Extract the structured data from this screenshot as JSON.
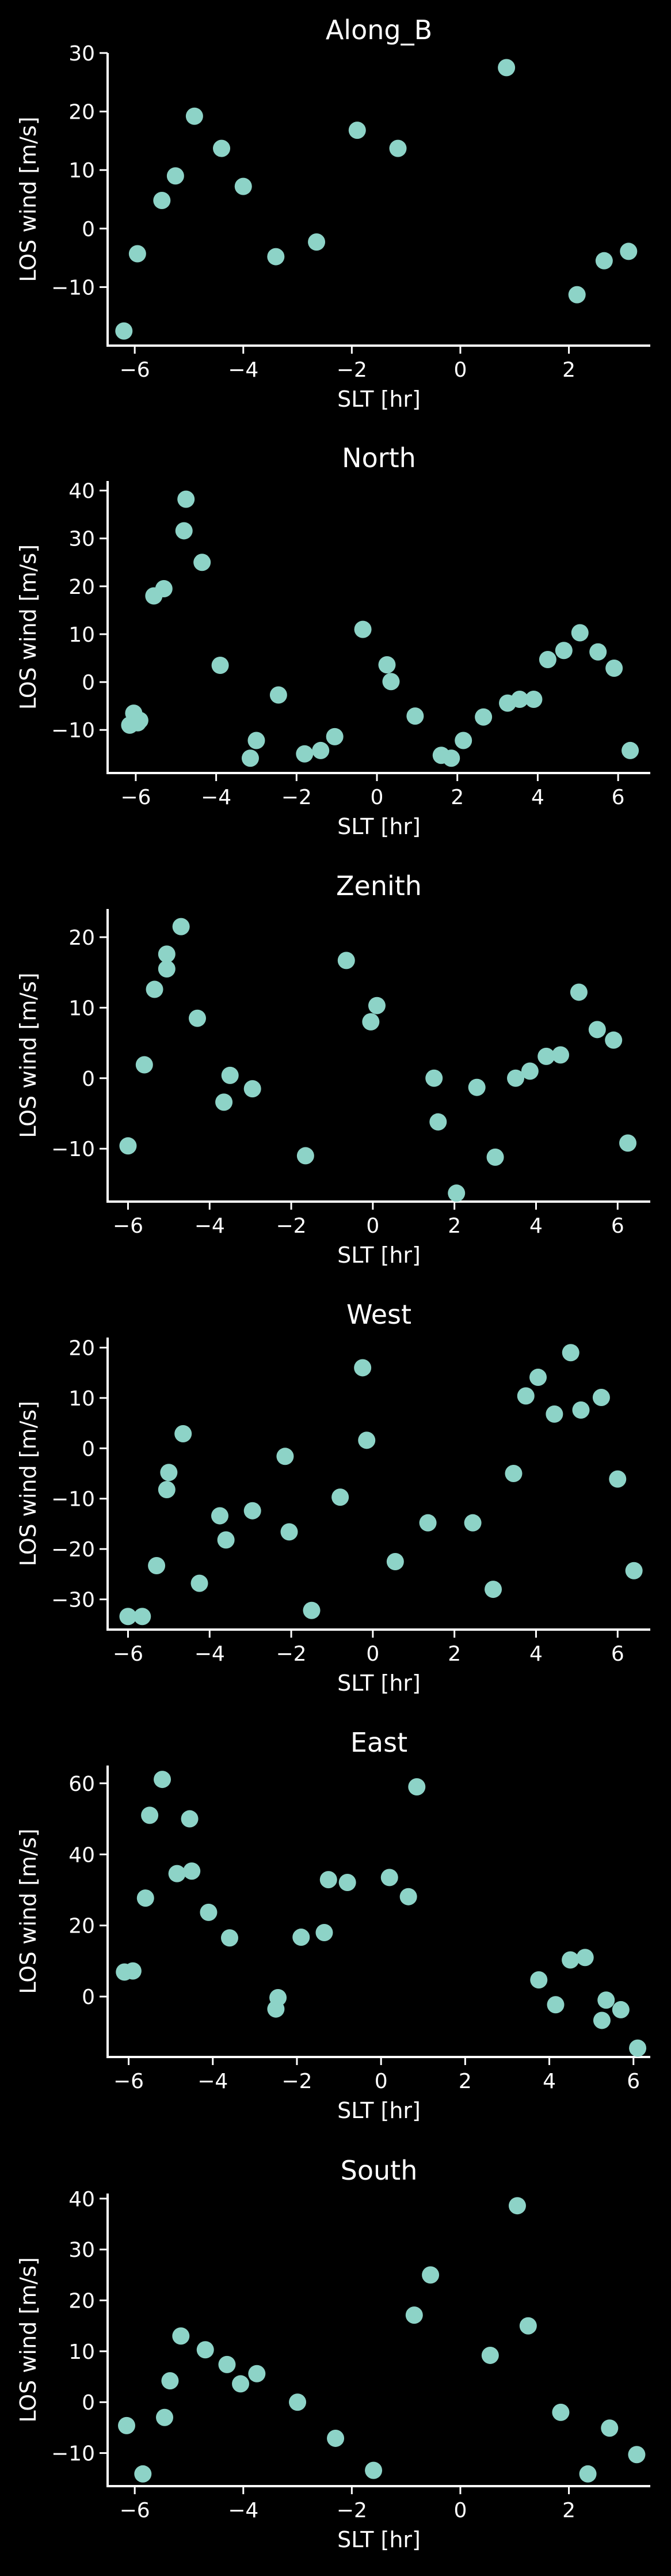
{
  "chart_data": [
    {
      "type": "scatter",
      "title": "Along_B",
      "xlabel": "SLT [hr]",
      "ylabel": "LOS wind [m/s]",
      "xlim": [
        -6.5,
        3.5
      ],
      "ylim": [
        -20,
        30
      ],
      "xticks": [
        -6,
        -4,
        -2,
        0,
        2
      ],
      "yticks": [
        -10,
        0,
        10,
        20,
        30
      ],
      "color": "#8dd3c7",
      "grid": false,
      "x": [
        -6.2,
        -5.95,
        -5.5,
        -5.25,
        -4.9,
        -4.4,
        -4.0,
        -3.4,
        -2.65,
        -1.9,
        -1.15,
        0.85,
        2.15,
        2.65,
        3.1
      ],
      "y": [
        -17.5,
        -4.3,
        4.8,
        9.0,
        19.2,
        13.7,
        7.2,
        -4.8,
        -2.3,
        16.8,
        13.7,
        27.5,
        -11.3,
        -5.5,
        -3.9
      ]
    },
    {
      "type": "scatter",
      "title": "North",
      "xlabel": "SLT [hr]",
      "ylabel": "LOS wind [m/s]",
      "xlim": [
        -6.7,
        6.8
      ],
      "ylim": [
        -19,
        42
      ],
      "xticks": [
        -6,
        -4,
        -2,
        0,
        2,
        4,
        6
      ],
      "yticks": [
        -10,
        0,
        10,
        20,
        30,
        40
      ],
      "color": "#8dd3c7",
      "grid": false,
      "x": [
        -6.15,
        -6.05,
        -5.95,
        -5.9,
        -5.55,
        -5.3,
        -4.8,
        -4.75,
        -4.35,
        -3.9,
        -3.15,
        -3.0,
        -2.45,
        -1.8,
        -1.4,
        -1.05,
        -0.35,
        0.25,
        0.35,
        0.95,
        1.6,
        1.85,
        2.15,
        2.65,
        3.25,
        3.55,
        3.9,
        4.25,
        4.65,
        5.05,
        5.5,
        5.9,
        6.3
      ],
      "y": [
        -9.0,
        -6.5,
        -8.5,
        -8.0,
        18.0,
        19.5,
        31.6,
        38.2,
        25.0,
        3.5,
        -15.9,
        -12.2,
        -2.7,
        -15.0,
        -14.3,
        -11.4,
        11.0,
        3.6,
        0.1,
        -7.1,
        -15.3,
        -15.9,
        -12.2,
        -7.3,
        -4.4,
        -3.6,
        -3.6,
        4.7,
        6.6,
        10.3,
        6.3,
        2.9,
        -14.3
      ]
    },
    {
      "type": "scatter",
      "title": "Zenith",
      "xlabel": "SLT [hr]",
      "ylabel": "LOS wind [m/s]",
      "xlim": [
        -6.5,
        6.8
      ],
      "ylim": [
        -17.5,
        24
      ],
      "xticks": [
        -6,
        -4,
        -2,
        0,
        2,
        4,
        6
      ],
      "yticks": [
        -10,
        0,
        10,
        20
      ],
      "color": "#8dd3c7",
      "grid": false,
      "x": [
        -6.0,
        -5.6,
        -5.35,
        -5.05,
        -5.05,
        -4.7,
        -4.3,
        -3.65,
        -3.5,
        -2.95,
        -1.65,
        -0.65,
        -0.05,
        0.1,
        1.5,
        1.6,
        2.05,
        2.55,
        3.0,
        3.5,
        3.85,
        4.25,
        4.6,
        5.05,
        5.5,
        5.9,
        6.25
      ],
      "y": [
        -9.6,
        1.9,
        12.6,
        15.5,
        17.6,
        21.5,
        8.5,
        -3.4,
        0.4,
        -1.5,
        -11.0,
        16.7,
        8.0,
        10.3,
        0.0,
        -6.2,
        -16.3,
        -1.3,
        -11.2,
        0.0,
        1.0,
        3.1,
        3.3,
        12.2,
        6.9,
        5.4,
        -9.2
      ]
    },
    {
      "type": "scatter",
      "title": "West",
      "xlabel": "SLT [hr]",
      "ylabel": "LOS wind [m/s]",
      "xlim": [
        -6.5,
        6.8
      ],
      "ylim": [
        -36,
        22
      ],
      "xticks": [
        -6,
        -4,
        -2,
        0,
        2,
        4,
        6
      ],
      "yticks": [
        -30,
        -20,
        -10,
        0,
        10,
        20
      ],
      "color": "#8dd3c7",
      "grid": false,
      "x": [
        -6.0,
        -5.65,
        -5.3,
        -5.05,
        -5.0,
        -4.65,
        -4.25,
        -3.75,
        -3.6,
        -2.95,
        -2.15,
        -2.05,
        -1.5,
        -0.8,
        -0.25,
        -0.15,
        0.55,
        1.35,
        2.45,
        2.95,
        3.45,
        3.75,
        4.05,
        4.45,
        4.85,
        5.1,
        5.6,
        6.0,
        6.4
      ],
      "y": [
        -33.4,
        -33.4,
        -23.3,
        -8.2,
        -4.8,
        2.9,
        -26.8,
        -13.4,
        -18.2,
        -12.4,
        -1.6,
        -16.6,
        -32.2,
        -9.7,
        16.0,
        1.6,
        -22.5,
        -14.8,
        -14.8,
        -28.0,
        -5.0,
        10.4,
        14.1,
        6.8,
        19.0,
        7.6,
        10.1,
        -6.1,
        -24.3
      ]
    },
    {
      "type": "scatter",
      "title": "East",
      "xlabel": "SLT [hr]",
      "ylabel": "LOS wind [m/s]",
      "xlim": [
        -6.5,
        6.4
      ],
      "ylim": [
        -17,
        65
      ],
      "xticks": [
        -6,
        -4,
        -2,
        0,
        2,
        4,
        6
      ],
      "yticks": [
        0,
        20,
        40,
        60
      ],
      "color": "#8dd3c7",
      "grid": false,
      "x": [
        -6.1,
        -5.9,
        -5.6,
        -5.5,
        -5.2,
        -4.85,
        -4.55,
        -4.5,
        -4.1,
        -3.6,
        -2.5,
        -2.45,
        -1.9,
        -1.35,
        -1.25,
        -0.8,
        0.2,
        0.65,
        0.85,
        3.75,
        4.15,
        4.5,
        4.85,
        5.25,
        5.35,
        5.7,
        6.1
      ],
      "y": [
        6.9,
        7.2,
        27.7,
        51.0,
        61.1,
        34.6,
        50.0,
        35.3,
        23.7,
        16.5,
        -3.5,
        -0.3,
        16.7,
        18.0,
        32.9,
        32.1,
        33.5,
        28.1,
        59.0,
        4.7,
        -2.3,
        10.3,
        11.0,
        -6.7,
        -1.0,
        -3.7,
        -14.5
      ]
    },
    {
      "type": "scatter",
      "title": "South",
      "xlabel": "SLT [hr]",
      "ylabel": "LOS wind [m/s]",
      "xlim": [
        -6.5,
        3.5
      ],
      "ylim": [
        -16.5,
        41
      ],
      "xticks": [
        -6,
        -4,
        -2,
        0,
        2
      ],
      "yticks": [
        -10,
        0,
        10,
        20,
        30,
        40
      ],
      "color": "#8dd3c7",
      "grid": false,
      "x": [
        -6.15,
        -5.85,
        -5.45,
        -5.35,
        -5.15,
        -4.7,
        -4.3,
        -4.05,
        -3.75,
        -3.0,
        -2.3,
        -1.6,
        -0.85,
        -0.55,
        0.55,
        1.05,
        1.25,
        1.85,
        2.35,
        2.75,
        3.25
      ],
      "y": [
        -4.6,
        -14.1,
        -3.0,
        4.2,
        13.0,
        10.3,
        7.4,
        3.6,
        5.6,
        0.0,
        -7.1,
        -13.4,
        17.1,
        25.0,
        9.2,
        38.6,
        15.0,
        -2.0,
        -14.1,
        -5.1,
        -10.3
      ]
    }
  ]
}
